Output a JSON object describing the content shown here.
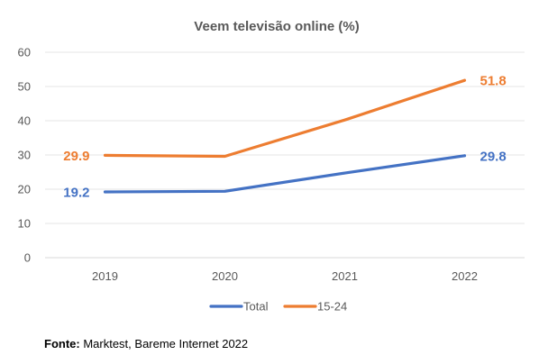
{
  "chart_data": {
    "type": "line",
    "title": "Veem televisão online (%)",
    "categories": [
      "2019",
      "2020",
      "2021",
      "2022"
    ],
    "ylim": [
      0,
      60
    ],
    "yticks": [
      0,
      10,
      20,
      30,
      40,
      50,
      60
    ],
    "grid": true,
    "legend_position": "bottom",
    "series": [
      {
        "name": "Total",
        "values": [
          19.2,
          19.4,
          24.7,
          29.8
        ],
        "color": "#4472C4",
        "labels": [
          {
            "index": 0,
            "text": "19.2",
            "side": "left"
          },
          {
            "index": 3,
            "text": "29.8",
            "side": "right"
          }
        ]
      },
      {
        "name": "15-24",
        "values": [
          29.9,
          29.6,
          40.2,
          51.8
        ],
        "color": "#ED7D31",
        "labels": [
          {
            "index": 0,
            "text": "29.9",
            "side": "left"
          },
          {
            "index": 3,
            "text": "51.8",
            "side": "right"
          }
        ]
      }
    ]
  },
  "source": {
    "label": "Fonte:",
    "text": " Marktest, Bareme Internet 2022"
  }
}
